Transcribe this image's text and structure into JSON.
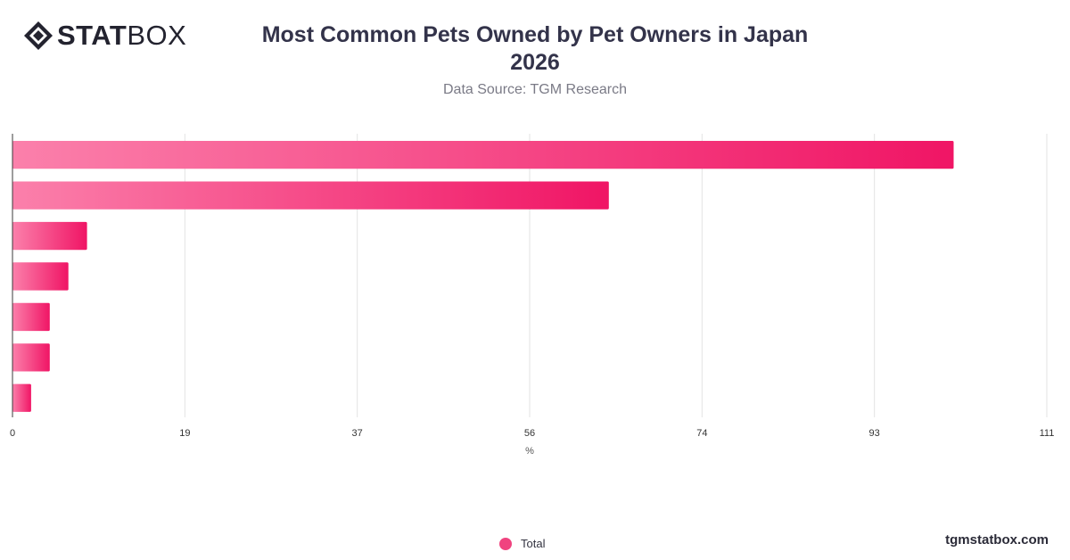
{
  "brand": {
    "logo_text_bold": "STAT",
    "logo_text_light": "BOX",
    "logo_icon": "statbox-diamond-logo-icon",
    "watermark": "tgmstatbox.com"
  },
  "header": {
    "title_line1": "Most Common Pets Owned by Pet Owners in Japan",
    "title_line2": "2026",
    "subtitle": "Data Source: TGM Research"
  },
  "colors": {
    "bar_start": "#fb80ab",
    "bar_end": "#f01565",
    "grid": "#e3e3e3",
    "axis": "#3b3b3b",
    "tick_text": "#333333"
  },
  "chart_data": {
    "type": "bar",
    "orientation": "horizontal",
    "categories": [
      "",
      "",
      "",
      "",
      "",
      "",
      ""
    ],
    "series": [
      {
        "name": "Total",
        "values": [
          101,
          64,
          8,
          6,
          4,
          4,
          2
        ]
      }
    ],
    "xlabel": "%",
    "ylabel": "",
    "xlim": [
      0,
      111
    ],
    "xticks": [
      "0",
      "19",
      "37",
      "56",
      "74",
      "93",
      "111"
    ],
    "grid": true,
    "legend_position": "bottom"
  }
}
